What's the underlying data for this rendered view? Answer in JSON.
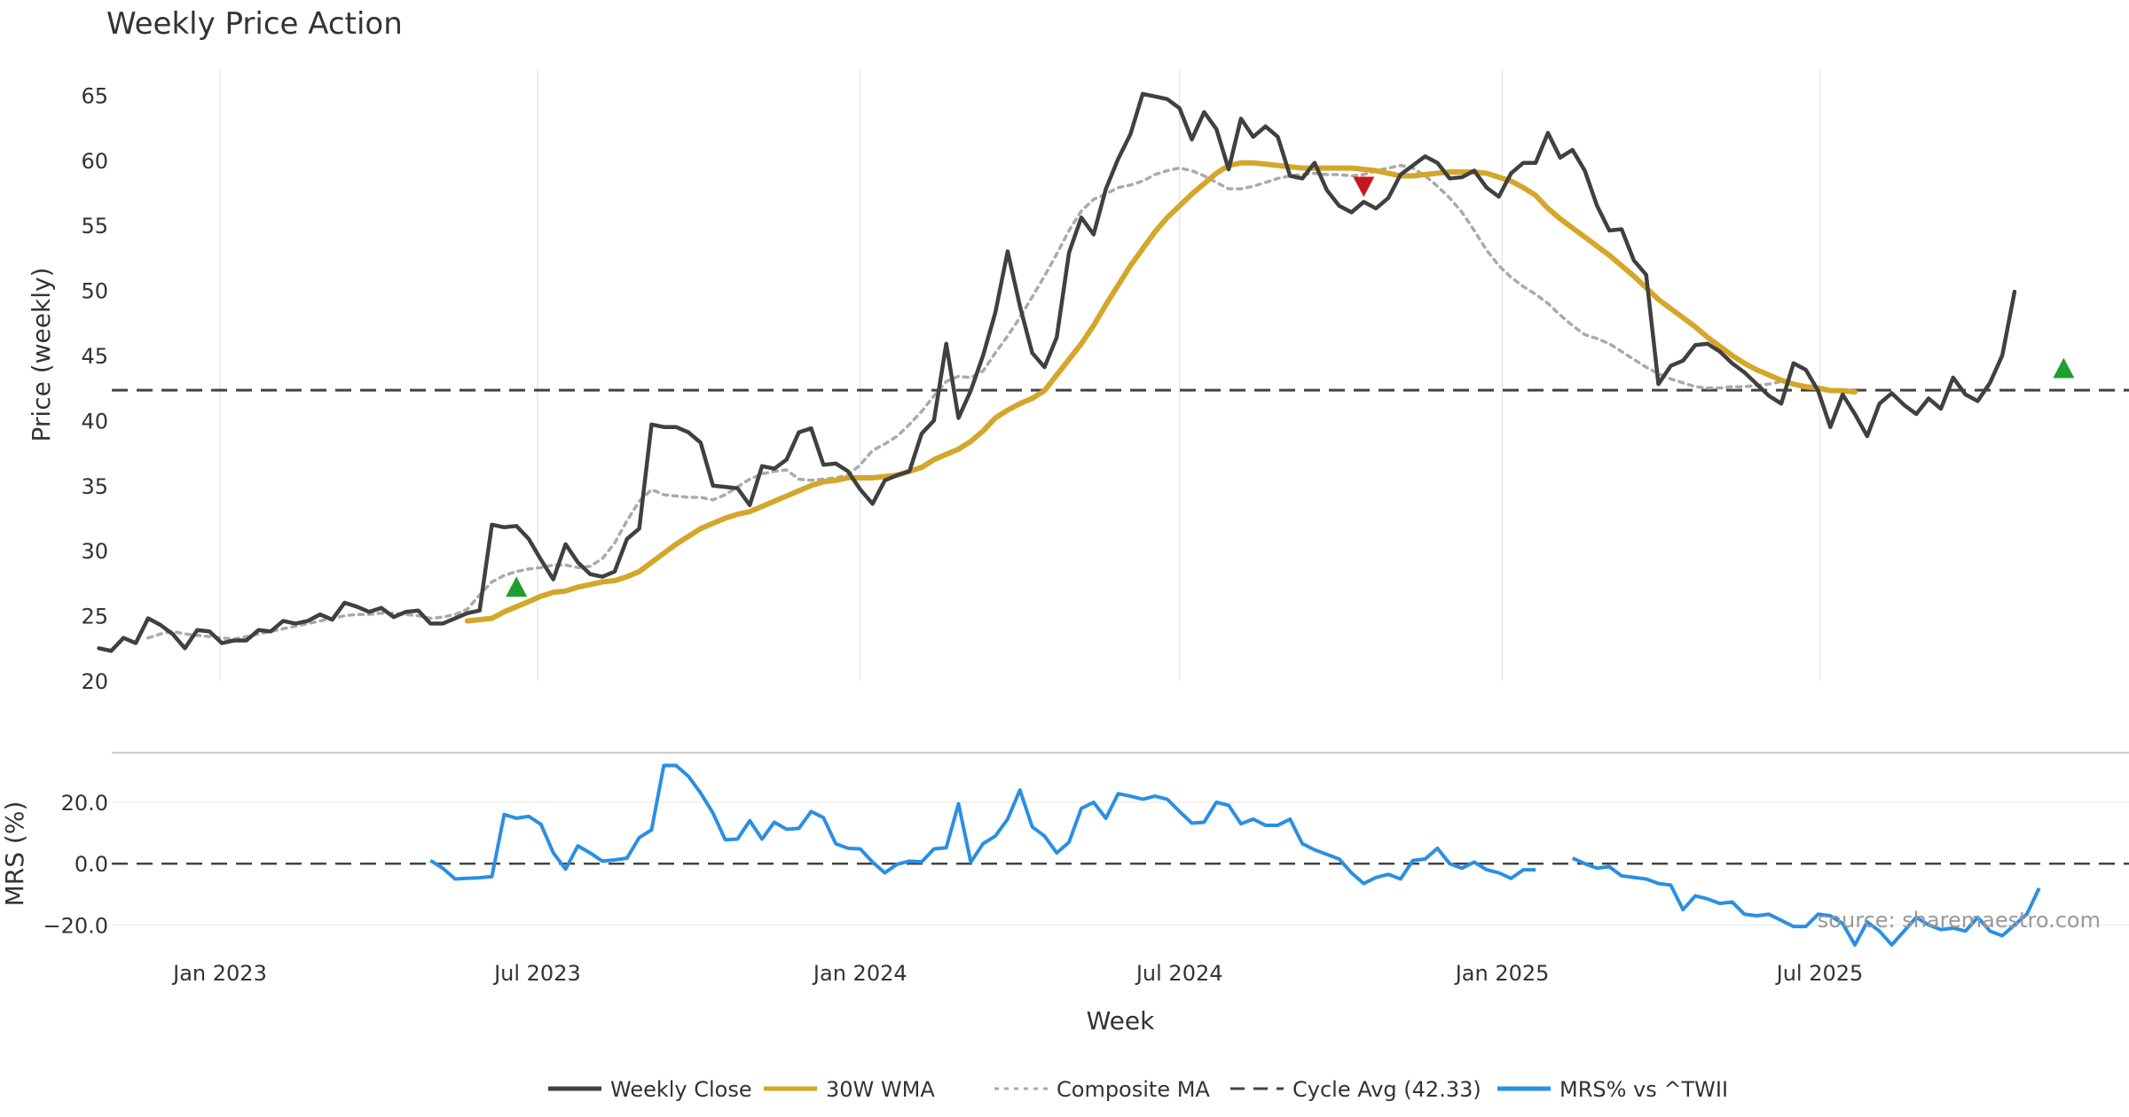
{
  "chart_data": [
    {
      "type": "line",
      "title": "Weekly Price Action",
      "ylabel": "Price (weekly)",
      "xlabel": "Week",
      "x_start": "2022-10-24",
      "x_interval_days": 7,
      "ylim": [
        20,
        67
      ],
      "yticks": [
        20,
        25,
        30,
        35,
        40,
        45,
        50,
        55,
        60,
        65
      ],
      "x_ticks": [
        {
          "label": "Jan 2023",
          "date": "2023-01-01"
        },
        {
          "label": "Jul 2023",
          "date": "2023-07-01"
        },
        {
          "label": "Jan 2024",
          "date": "2024-01-01"
        },
        {
          "label": "Jul 2024",
          "date": "2024-07-01"
        },
        {
          "label": "Jan 2025",
          "date": "2025-01-01"
        },
        {
          "label": "Jul 2025",
          "date": "2025-07-01"
        }
      ],
      "grid": true,
      "reference_line": {
        "name": "Cycle Avg (42.33)",
        "value": 42.33
      },
      "series": [
        {
          "name": "Weekly Close",
          "color": "#404040",
          "style": "solid",
          "values": [
            22.5,
            22.3,
            23.3,
            22.9,
            24.8,
            24.3,
            23.6,
            22.5,
            23.9,
            23.8,
            22.9,
            23.1,
            23.1,
            23.9,
            23.8,
            24.6,
            24.4,
            24.6,
            25.1,
            24.7,
            26.0,
            25.7,
            25.3,
            25.6,
            24.9,
            25.3,
            25.4,
            24.4,
            24.4,
            24.8,
            25.2,
            25.4,
            32.0,
            31.8,
            31.9,
            30.9,
            29.3,
            27.8,
            30.5,
            29.1,
            28.2,
            28.0,
            28.4,
            30.9,
            31.7,
            39.7,
            39.5,
            39.5,
            39.1,
            38.3,
            35.0,
            34.9,
            34.8,
            33.5,
            36.5,
            36.3,
            37.0,
            39.1,
            39.4,
            36.6,
            36.7,
            36.1,
            34.7,
            33.6,
            35.4,
            35.8,
            36.1,
            39.0,
            40.0,
            45.9,
            40.2,
            42.3,
            45.0,
            48.3,
            53.0,
            48.8,
            45.2,
            44.1,
            46.4,
            52.9,
            55.6,
            54.3,
            57.8,
            60.1,
            62.0,
            65.1,
            64.9,
            64.7,
            64.0,
            61.6,
            63.7,
            62.4,
            59.3,
            63.2,
            61.8,
            62.6,
            61.8,
            58.8,
            58.6,
            59.8,
            57.7,
            56.5,
            56.0,
            56.8,
            56.3,
            57.1,
            58.9,
            59.6,
            60.3,
            59.8,
            58.6,
            58.7,
            59.2,
            57.9,
            57.2,
            59.0,
            59.8,
            59.8,
            62.1,
            60.2,
            60.8,
            59.2,
            56.5,
            54.6,
            54.7,
            52.3,
            51.2,
            42.8,
            44.2,
            44.6,
            45.8,
            45.9,
            45.3,
            44.4,
            43.7,
            42.8,
            41.9,
            41.3,
            44.4,
            43.9,
            42.3,
            39.5,
            42.0,
            40.5,
            38.8,
            41.3,
            42.1,
            41.2,
            40.5,
            41.7,
            40.9,
            43.3,
            42.0,
            41.5,
            42.9,
            45.0,
            49.9
          ]
        },
        {
          "name": "30W WMA",
          "color": "#D4A62A",
          "style": "solid",
          "start_index": 30,
          "values": [
            24.6,
            24.7,
            24.8,
            25.3,
            25.7,
            26.1,
            26.5,
            26.8,
            26.9,
            27.2,
            27.4,
            27.6,
            27.7,
            28.0,
            28.4,
            29.1,
            29.8,
            30.5,
            31.1,
            31.7,
            32.1,
            32.5,
            32.8,
            33.0,
            33.4,
            33.8,
            34.2,
            34.6,
            35.0,
            35.3,
            35.4,
            35.6,
            35.6,
            35.6,
            35.7,
            35.8,
            36.1,
            36.4,
            37.0,
            37.4,
            37.8,
            38.4,
            39.2,
            40.2,
            40.8,
            41.3,
            41.7,
            42.3,
            43.5,
            44.7,
            45.9,
            47.3,
            48.9,
            50.4,
            51.9,
            53.2,
            54.5,
            55.6,
            56.5,
            57.4,
            58.2,
            59.0,
            59.6,
            59.8,
            59.8,
            59.7,
            59.6,
            59.5,
            59.4,
            59.4,
            59.4,
            59.4,
            59.4,
            59.3,
            59.2,
            59.0,
            58.8,
            58.8,
            58.9,
            59.0,
            59.1,
            59.1,
            59.1,
            59.0,
            58.7,
            58.4,
            57.9,
            57.3,
            56.3,
            55.5,
            54.8,
            54.1,
            53.4,
            52.7,
            51.9,
            51.1,
            50.2,
            49.3,
            48.6,
            47.9,
            47.2,
            46.4,
            45.7,
            45.0,
            44.4,
            43.9,
            43.5,
            43.1,
            42.8,
            42.6,
            42.5,
            42.3,
            42.3,
            42.2
          ]
        },
        {
          "name": "Composite MA",
          "color": "#AAAAAA",
          "style": "dotted",
          "start_index": 4,
          "values": [
            23.3,
            23.6,
            23.8,
            23.6,
            23.5,
            23.4,
            23.3,
            23.2,
            23.4,
            23.6,
            23.8,
            24.0,
            24.2,
            24.4,
            24.6,
            24.8,
            25.0,
            25.1,
            25.1,
            25.2,
            25.2,
            25.1,
            25.0,
            24.8,
            24.9,
            25.1,
            25.5,
            26.6,
            27.6,
            28.1,
            28.4,
            28.6,
            28.7,
            28.9,
            28.9,
            28.7,
            28.8,
            29.4,
            30.6,
            32.3,
            33.8,
            34.7,
            34.3,
            34.2,
            34.1,
            34.1,
            33.9,
            34.3,
            34.9,
            35.5,
            35.9,
            36.1,
            36.2,
            35.5,
            35.4,
            35.5,
            35.6,
            35.8,
            36.6,
            37.7,
            38.2,
            38.8,
            39.7,
            40.7,
            41.9,
            43.0,
            43.4,
            43.3,
            43.8,
            45.2,
            46.5,
            47.9,
            49.5,
            51.1,
            52.8,
            54.6,
            56.1,
            57.0,
            57.4,
            57.9,
            58.1,
            58.4,
            58.9,
            59.2,
            59.4,
            59.2,
            58.8,
            58.3,
            57.8,
            57.8,
            58.0,
            58.3,
            58.6,
            58.8,
            58.9,
            59.0,
            58.9,
            58.9,
            58.8,
            58.9,
            59.2,
            59.4,
            59.6,
            59.4,
            58.8,
            58.0,
            57.1,
            56.0,
            54.6,
            53.1,
            51.9,
            51.0,
            50.3,
            49.7,
            49.0,
            48.1,
            47.3,
            46.6,
            46.3,
            45.9,
            45.3,
            44.7,
            44.1,
            43.6,
            43.2,
            42.9,
            42.6,
            42.5,
            42.5,
            42.6,
            42.6,
            42.7,
            42.8,
            43.0
          ]
        }
      ],
      "markers": [
        {
          "shape": "triangle-up",
          "color": "#1E9E2E",
          "index": 34,
          "value": 27.2
        },
        {
          "shape": "triangle-down",
          "color": "#C8161D",
          "index": 103,
          "value": 58.0
        },
        {
          "shape": "triangle-up",
          "color": "#1E9E2E",
          "index": 160,
          "value": 44.0
        }
      ]
    },
    {
      "type": "line",
      "ylabel": "MRS (%)",
      "ylim": [
        -30,
        33
      ],
      "yticks": [
        -20,
        0,
        20
      ],
      "ytick_labels": [
        "−20.0",
        "0.0",
        "20.0"
      ],
      "reference_line": {
        "value": 0
      },
      "series": [
        {
          "name": "MRS% vs ^TWII",
          "color": "#2B8FE3",
          "style": "solid",
          "start_index": 27,
          "values": [
            1.0,
            -1.5,
            -5.0,
            -4.8,
            -4.6,
            -4.2,
            16.0,
            14.8,
            15.4,
            12.8,
            3.5,
            -1.8,
            5.8,
            3.5,
            0.8,
            1.2,
            1.8,
            8.5,
            11.0,
            32.0,
            32.0,
            28.5,
            23.0,
            16.5,
            7.8,
            8.0,
            14.0,
            8.0,
            13.5,
            11.2,
            11.5,
            17.0,
            15.0,
            6.5,
            5.0,
            4.8,
            0.5,
            -3.0,
            -0.2,
            0.8,
            0.6,
            4.8,
            5.2,
            19.5,
            0.5,
            6.5,
            9.0,
            14.5,
            24.0,
            12.0,
            9.0,
            3.5,
            7.0,
            18.0,
            20.0,
            14.8,
            22.8,
            22.0,
            21.0,
            22.0,
            21.0,
            17.0,
            13.2,
            13.5,
            20.0,
            19.0,
            13.0,
            14.5,
            12.5,
            12.5,
            14.5,
            6.5,
            4.5,
            3.0,
            1.5,
            -3.0,
            -6.5,
            -4.5,
            -3.5,
            -5.0,
            1.0,
            1.5,
            5.0,
            0.0,
            -1.5,
            0.5,
            -2.0,
            -3.0,
            -4.8,
            -2.0,
            -2.0,
            null,
            null,
            1.8,
            0.0,
            -1.5,
            -1.0,
            -4.0,
            -4.5,
            -5.0,
            -6.5,
            -7.0,
            -15.0,
            -10.5,
            -11.5,
            -13.0,
            -12.5,
            -16.5,
            -17.0,
            -16.5,
            -18.5,
            -20.5,
            -20.5,
            -16.5,
            -17.0,
            -19.5,
            -26.5,
            -19.0,
            -22.0,
            -26.5,
            -22.0,
            -17.5,
            -20.0,
            -21.5,
            -21.0,
            -22.0,
            -17.5,
            -22.0,
            -23.5,
            -20.0,
            -16.5,
            -8.0
          ]
        }
      ]
    }
  ],
  "source_text": "source: sharemaestro.com",
  "legend": [
    {
      "label": "Weekly Close",
      "color": "#404040",
      "style": "solid"
    },
    {
      "label": "30W WMA",
      "color": "#D4A62A",
      "style": "solid"
    },
    {
      "label": "Composite MA",
      "color": "#AAAAAA",
      "style": "dotted"
    },
    {
      "label": "Cycle Avg (42.33)",
      "color": "#444444",
      "style": "dashed"
    },
    {
      "label": "MRS% vs ^TWII",
      "color": "#2B8FE3",
      "style": "solid"
    }
  ]
}
